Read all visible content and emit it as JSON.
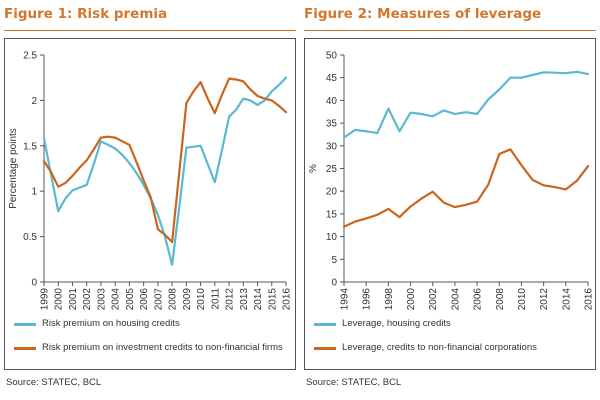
{
  "colors": {
    "title": "#d4772c",
    "blue": "#5bb8d2",
    "orange": "#c8661e",
    "axis": "#555555"
  },
  "chart_data": [
    {
      "type": "line",
      "title": "Figure 1: Risk premia",
      "ylabel": "Percentage points",
      "xlabel": "",
      "ylim": [
        0,
        2.5
      ],
      "yticks": [
        0,
        0.5,
        1,
        1.5,
        2,
        2.5
      ],
      "ytick_labels": [
        "0",
        "0.5",
        "1",
        "1.5",
        "2",
        "2.5"
      ],
      "xticks": [
        "1999",
        "2000",
        "2001",
        "2002",
        "2003",
        "2004",
        "2005",
        "2006",
        "2007",
        "2008",
        "2009",
        "2010",
        "2011",
        "2012",
        "2013",
        "2014",
        "2015",
        "2016"
      ],
      "grid": false,
      "legend": "bottom",
      "x": [
        1999,
        1999.5,
        2000,
        2000.5,
        2001,
        2001.5,
        2002,
        2002.5,
        2003,
        2003.5,
        2004,
        2004.5,
        2005,
        2005.5,
        2006,
        2006.5,
        2007,
        2007.5,
        2008,
        2008.5,
        2009,
        2009.5,
        2010,
        2010.5,
        2011,
        2011.5,
        2012,
        2012.5,
        2013,
        2013.5,
        2014,
        2014.5,
        2015,
        2015.5,
        2016
      ],
      "series": [
        {
          "name": "Risk premium on housing credits",
          "color": "#5bb8d2",
          "values": [
            1.58,
            1.18,
            0.78,
            0.92,
            1.01,
            1.04,
            1.07,
            1.3,
            1.55,
            1.51,
            1.47,
            1.4,
            1.31,
            1.2,
            1.07,
            0.92,
            0.74,
            0.5,
            0.19,
            0.82,
            1.48,
            1.49,
            1.5,
            1.3,
            1.1,
            1.45,
            1.82,
            1.9,
            2.02,
            2.0,
            1.95,
            2.0,
            2.1,
            2.17,
            2.25
          ]
        },
        {
          "name": "Risk premium on investment credits to non-financial firms",
          "color": "#c8661e",
          "values": [
            1.33,
            1.21,
            1.05,
            1.09,
            1.17,
            1.26,
            1.34,
            1.46,
            1.59,
            1.6,
            1.59,
            1.55,
            1.51,
            1.32,
            1.12,
            0.93,
            0.58,
            0.52,
            0.44,
            1.2,
            1.97,
            2.1,
            2.2,
            2.02,
            1.86,
            2.06,
            2.24,
            2.23,
            2.21,
            2.12,
            2.05,
            2.02,
            2.0,
            1.94,
            1.87
          ]
        }
      ],
      "source": "Source: STATEC, BCL"
    },
    {
      "type": "line",
      "title": "Figure 2: Measures of leverage",
      "ylabel": "%",
      "xlabel": "",
      "ylim": [
        0,
        50
      ],
      "yticks": [
        0,
        5,
        10,
        15,
        20,
        25,
        30,
        35,
        40,
        45,
        50
      ],
      "ytick_labels": [
        "0",
        "5",
        "10",
        "15",
        "20",
        "25",
        "30",
        "35",
        "40",
        "45",
        "50"
      ],
      "xticks": [
        "1994",
        "1996",
        "1998",
        "2000",
        "2002",
        "2004",
        "2006",
        "2008",
        "2010",
        "2012",
        "2014",
        "2016"
      ],
      "grid": false,
      "legend": "bottom",
      "x": [
        1994,
        1995,
        1996,
        1997,
        1998,
        1999,
        2000,
        2001,
        2002,
        2003,
        2004,
        2005,
        2006,
        2007,
        2008,
        2009,
        2010,
        2011,
        2012,
        2013,
        2014,
        2015,
        2016
      ],
      "series": [
        {
          "name": "Leverage, housing credits",
          "color": "#5bb8d2",
          "values": [
            31.8,
            33.5,
            33.2,
            32.8,
            38.2,
            33.2,
            37.3,
            37.0,
            36.5,
            37.8,
            37.0,
            37.4,
            37.0,
            40.2,
            42.4,
            45.0,
            45.0,
            45.6,
            46.2,
            46.1,
            46.0,
            46.3,
            45.8
          ]
        },
        {
          "name": "Leverage, credits to non-financial corporations",
          "color": "#c8661e",
          "values": [
            12.2,
            13.3,
            14.0,
            14.8,
            16.1,
            14.3,
            16.6,
            18.4,
            19.9,
            17.5,
            16.5,
            17.0,
            17.7,
            21.4,
            28.2,
            29.2,
            25.7,
            22.5,
            21.3,
            20.9,
            20.4,
            22.3,
            25.5
          ]
        }
      ],
      "source": "Source: STATEC, BCL"
    }
  ]
}
